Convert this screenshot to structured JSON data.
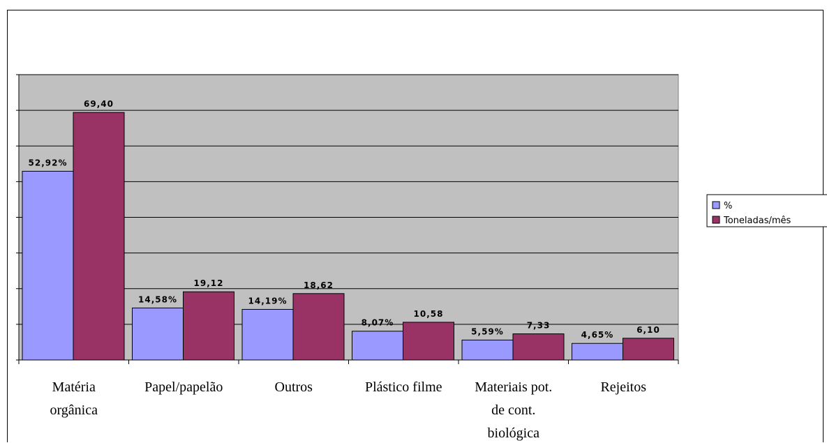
{
  "chart_data": {
    "type": "bar",
    "title": "",
    "xlabel": "",
    "ylabel": "",
    "ylim": [
      0,
      80
    ],
    "grid": true,
    "legend_position": "right",
    "categories": [
      [
        "Matéria",
        "orgânica"
      ],
      [
        "Papel/papelão"
      ],
      [
        "Outros"
      ],
      [
        "Plástico filme"
      ],
      [
        "Materiais pot.",
        "de cont.",
        "biológica"
      ],
      [
        "Rejeitos"
      ]
    ],
    "series": [
      {
        "name": "%",
        "color": "#9999ff",
        "values": [
          52.92,
          14.58,
          14.19,
          8.07,
          5.59,
          4.65
        ],
        "labels": [
          "52,92%",
          "14,58%",
          "14,19%",
          "8,07%",
          "5,59%",
          "4,65%"
        ]
      },
      {
        "name": "Toneladas/mês",
        "color": "#993366",
        "values": [
          69.4,
          19.12,
          18.62,
          10.58,
          7.33,
          6.1
        ],
        "labels": [
          "69,40",
          "19,12",
          "18,62",
          "10,58",
          "7,33",
          "6,10"
        ]
      }
    ],
    "plot_background": "#c0c0c0"
  }
}
